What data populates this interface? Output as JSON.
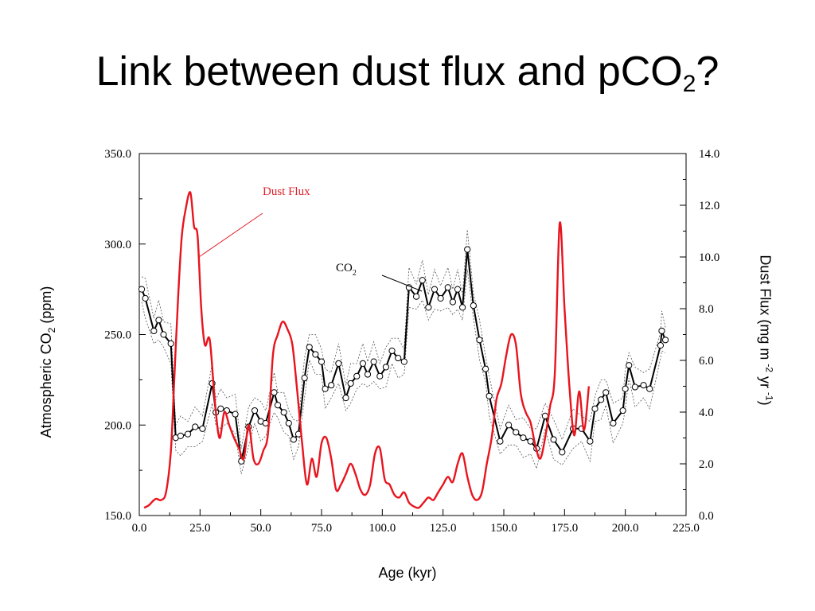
{
  "slide": {
    "title_main": "Link between dust flux and pCO",
    "title_sub": "2",
    "title_end": "?",
    "y_left_main": "Atmospheric CO",
    "y_left_sub": "2",
    "y_left_end": " (ppm)",
    "y_right_main": "Dust Flux (mg m ",
    "y_right_sup1": "-2",
    "y_right_mid": " yr ",
    "y_right_sup2": "-1",
    "y_right_end": ")",
    "x_label": "Age (kyr)"
  },
  "chart_data": {
    "type": "line",
    "xlim": [
      0,
      225
    ],
    "ylim_left": [
      150,
      350
    ],
    "ylim_right": [
      0,
      14
    ],
    "x_ticks": [
      0,
      25,
      50,
      75,
      100,
      125,
      150,
      175,
      200,
      225
    ],
    "x_tick_labels": [
      "0.0",
      "25.0",
      "50.0",
      "75.0",
      "100.0",
      "125.0",
      "150.0",
      "175.0",
      "200.0",
      "225.0"
    ],
    "y_left_ticks": [
      150,
      200,
      250,
      300,
      350
    ],
    "y_left_tick_labels": [
      "150.0",
      "200.0",
      "250.0",
      "300.0",
      "350.0"
    ],
    "y_right_ticks": [
      0,
      2,
      4,
      6,
      8,
      10,
      12,
      14
    ],
    "y_right_tick_labels": [
      "0.0",
      "2.0",
      "4.0",
      "6.0",
      "8.0",
      "10.0",
      "12.0",
      "14.0"
    ],
    "annotations": [
      {
        "text": "Dust Flux",
        "color": "#e0202a"
      },
      {
        "text_main": "CO",
        "text_sub": "2",
        "color": "#000000"
      }
    ],
    "colors": {
      "dust": "#e8141e",
      "co2": "#000000",
      "envelope": "#555555"
    },
    "series": [
      {
        "name": "CO2",
        "axis": "left",
        "x": [
          1,
          2.5,
          6,
          8,
          10,
          13,
          15,
          17,
          20,
          23,
          26,
          30,
          31.5,
          33.5,
          36,
          39.5,
          42,
          45,
          47.5,
          50,
          52,
          55.5,
          57,
          59.5,
          61.5,
          63.5,
          65.5,
          68,
          70,
          72.5,
          75,
          76.5,
          79,
          82,
          85,
          87,
          89.5,
          92,
          94,
          96.5,
          99,
          101.5,
          104,
          106.5,
          109,
          111,
          114,
          116.5,
          119,
          121.5,
          124,
          127,
          129,
          131,
          133,
          135,
          137.5,
          140,
          142.5,
          144,
          148.5,
          152,
          155,
          158,
          161,
          163.5,
          167,
          170.5,
          174,
          178.5,
          182,
          185.5,
          187.5,
          190,
          192,
          195,
          199,
          200,
          201.5,
          204,
          207.5,
          210,
          214.5,
          215,
          216.5
        ],
        "y": [
          275,
          270,
          252,
          258,
          250,
          245,
          193,
          194,
          195,
          199,
          198,
          223,
          207,
          209,
          208,
          206,
          180,
          199,
          208,
          202,
          201,
          218,
          211,
          207,
          201,
          192,
          195,
          226,
          243,
          239,
          235,
          220,
          222,
          234,
          215,
          223,
          227,
          234,
          228,
          235,
          227,
          232,
          241,
          237,
          235,
          276,
          271,
          280,
          265,
          275,
          270,
          276,
          268,
          275,
          265,
          297,
          266,
          247,
          231,
          216,
          191,
          200,
          196,
          193,
          191,
          187,
          205,
          192,
          185,
          198,
          198,
          191,
          209,
          214,
          218,
          201,
          208,
          220,
          233,
          221,
          222,
          220,
          244,
          252,
          247
        ]
      },
      {
        "name": "Dust Flux",
        "axis": "right",
        "x": [
          2,
          4,
          5.5,
          7,
          9,
          11,
          13,
          14.5,
          16,
          17.5,
          19,
          21,
          22.5,
          24,
          25.5,
          27,
          29,
          31,
          33,
          35,
          37,
          39,
          41,
          43,
          45,
          47,
          49,
          51,
          53,
          55,
          57,
          59,
          61,
          63,
          65,
          67,
          69,
          71,
          73,
          75,
          77,
          79,
          81,
          83,
          85,
          87,
          89,
          91,
          93,
          95,
          97,
          99,
          101,
          103,
          105,
          107,
          109,
          111,
          113,
          115,
          117,
          119,
          121,
          123,
          125,
          127,
          129,
          131,
          133,
          135,
          137,
          139,
          141,
          143,
          145,
          147,
          149,
          151,
          153,
          155,
          157,
          159,
          161,
          163,
          165,
          167,
          169,
          171,
          173,
          175,
          177,
          179,
          181,
          183,
          185
        ],
        "y": [
          0.3,
          0.4,
          0.55,
          0.65,
          0.6,
          0.9,
          2.5,
          5.5,
          8.5,
          10.8,
          11.8,
          12.5,
          11.2,
          10.8,
          8.0,
          6.6,
          6.8,
          4.5,
          3.0,
          4.0,
          3.5,
          3.0,
          2.6,
          2.2,
          3.5,
          2.2,
          2.0,
          2.5,
          3.2,
          6.2,
          7.0,
          7.5,
          7.2,
          6.6,
          4.8,
          2.8,
          1.2,
          2.2,
          1.5,
          2.8,
          3.0,
          2.2,
          1.0,
          1.2,
          1.6,
          2.0,
          1.6,
          1.0,
          0.8,
          1.2,
          2.4,
          2.6,
          1.4,
          1.2,
          0.8,
          0.7,
          0.9,
          0.5,
          0.35,
          0.3,
          0.5,
          0.7,
          0.6,
          0.9,
          1.2,
          1.5,
          1.3,
          2.0,
          2.4,
          1.5,
          0.8,
          0.6,
          0.9,
          2.0,
          3.0,
          4.5,
          5.1,
          6.2,
          7.0,
          6.6,
          4.7,
          4.0,
          3.6,
          2.7,
          2.2,
          3.0,
          4.2,
          5.5,
          11.3,
          8.0,
          5.0,
          3.1,
          4.8,
          3.3,
          5.0
        ]
      }
    ]
  }
}
